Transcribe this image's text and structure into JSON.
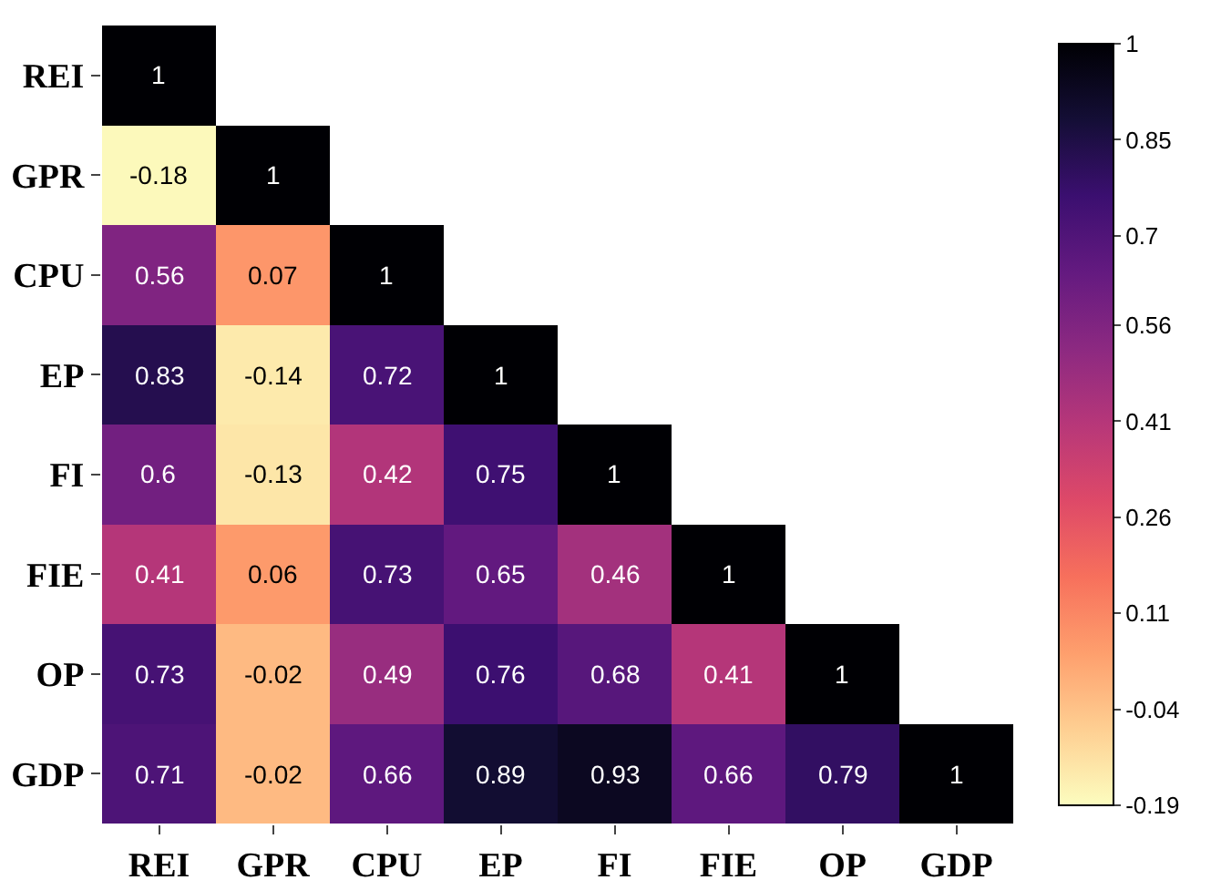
{
  "chart_data": {
    "type": "heatmap",
    "categories": [
      "REI",
      "GPR",
      "CPU",
      "EP",
      "FI",
      "FIE",
      "OP",
      "GDP"
    ],
    "y_categories": [
      "REI",
      "GPR",
      "CPU",
      "EP",
      "FI",
      "FIE",
      "OP",
      "GDP"
    ],
    "cells": [
      [
        1,
        null,
        null,
        null,
        null,
        null,
        null,
        null
      ],
      [
        -0.18,
        1,
        null,
        null,
        null,
        null,
        null,
        null
      ],
      [
        0.56,
        0.07,
        1,
        null,
        null,
        null,
        null,
        null
      ],
      [
        0.83,
        -0.14,
        0.72,
        1,
        null,
        null,
        null,
        null
      ],
      [
        0.6,
        -0.13,
        0.42,
        0.75,
        1,
        null,
        null,
        null
      ],
      [
        0.41,
        0.06,
        0.73,
        0.65,
        0.46,
        1,
        null,
        null
      ],
      [
        0.73,
        -0.02,
        0.49,
        0.76,
        0.68,
        0.41,
        1,
        null
      ],
      [
        0.71,
        -0.02,
        0.66,
        0.89,
        0.93,
        0.66,
        0.79,
        1
      ]
    ],
    "data_labels": true,
    "clim": [
      -0.19,
      1
    ],
    "cticks": [
      -0.19,
      -0.04,
      0.11,
      0.26,
      0.41,
      0.56,
      0.7,
      0.85,
      1
    ]
  }
}
